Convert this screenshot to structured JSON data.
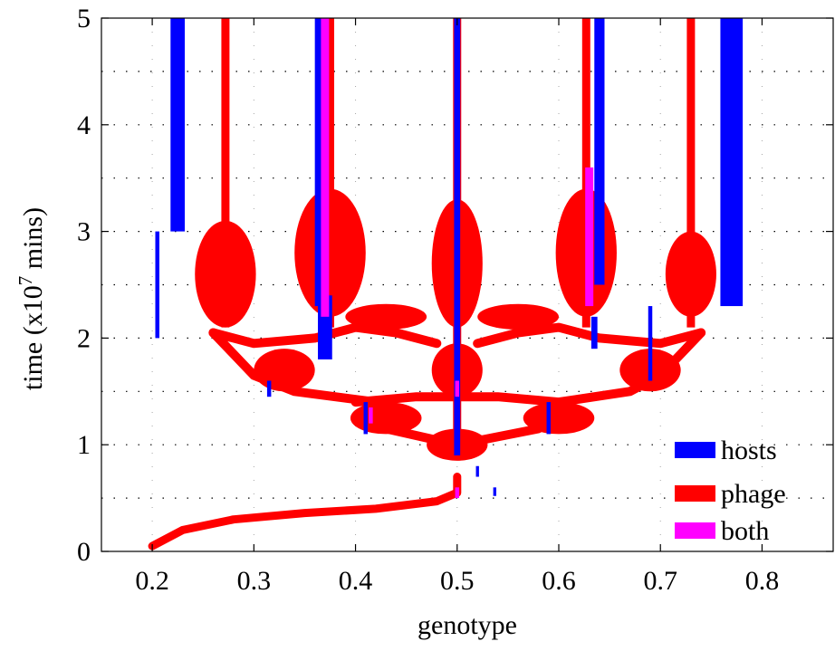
{
  "chart_data": {
    "type": "scatter",
    "title": "",
    "xlabel": "genotype",
    "ylabel_main": "time (x10",
    "ylabel_exp": "7",
    "ylabel_tail": " mins)",
    "xlim": [
      0.15,
      0.87
    ],
    "ylim": [
      0,
      5
    ],
    "xticks": [
      "0.2",
      "0.3",
      "0.4",
      "0.5",
      "0.6",
      "0.7",
      "0.8"
    ],
    "xtick_values": [
      0.2,
      0.3,
      0.4,
      0.5,
      0.6,
      0.7,
      0.8
    ],
    "yticks": [
      "0",
      "1",
      "2",
      "3",
      "4",
      "5"
    ],
    "ytick_values": [
      0,
      1,
      2,
      3,
      4,
      5
    ],
    "grid": "dotted horizontal and vertical",
    "legend_position": "bottom-right",
    "colors": {
      "hosts": "#0000ff",
      "phage": "#ff0000",
      "both": "#ff00ff"
    },
    "series": [
      {
        "name": "hosts",
        "color": "#0000ff",
        "segments": [
          {
            "x": 0.225,
            "y0": 3.0,
            "y1": 5.0,
            "w": 0.014
          },
          {
            "x": 0.365,
            "y0": 2.3,
            "y1": 5.0,
            "w": 0.01
          },
          {
            "x": 0.64,
            "y0": 2.5,
            "y1": 5.0,
            "w": 0.01
          },
          {
            "x": 0.77,
            "y0": 2.3,
            "y1": 5.0,
            "w": 0.022
          },
          {
            "x": 0.5,
            "y0": 0.9,
            "y1": 5.0,
            "w": 0.006
          },
          {
            "x": 0.205,
            "y0": 2.0,
            "y1": 3.0,
            "w": 0.004
          },
          {
            "x": 0.37,
            "y0": 1.8,
            "y1": 2.4,
            "w": 0.014
          },
          {
            "x": 0.635,
            "y0": 1.9,
            "y1": 2.2,
            "w": 0.006
          },
          {
            "x": 0.69,
            "y0": 1.6,
            "y1": 2.3,
            "w": 0.004
          },
          {
            "x": 0.315,
            "y0": 1.45,
            "y1": 1.6,
            "w": 0.004
          },
          {
            "x": 0.41,
            "y0": 1.1,
            "y1": 1.4,
            "w": 0.004
          },
          {
            "x": 0.59,
            "y0": 1.1,
            "y1": 1.4,
            "w": 0.004
          },
          {
            "x": 0.52,
            "y0": 0.7,
            "y1": 0.8,
            "w": 0.003
          },
          {
            "x": 0.537,
            "y0": 0.52,
            "y1": 0.6,
            "w": 0.003
          }
        ]
      },
      {
        "name": "phage",
        "color": "#ff0000",
        "trunks": [
          {
            "x": 0.272,
            "y0": 2.1,
            "y1": 5.0,
            "w": 0.008
          },
          {
            "x": 0.375,
            "y0": 2.1,
            "y1": 5.0,
            "w": 0.008
          },
          {
            "x": 0.5,
            "y0": 1.0,
            "y1": 5.0,
            "w": 0.008
          },
          {
            "x": 0.627,
            "y0": 2.1,
            "y1": 5.0,
            "w": 0.008
          },
          {
            "x": 0.73,
            "y0": 2.1,
            "y1": 5.0,
            "w": 0.008
          }
        ],
        "blobs": [
          {
            "cx": 0.272,
            "cy": 2.6,
            "rx": 0.03,
            "ry": 0.5
          },
          {
            "cx": 0.375,
            "cy": 2.8,
            "rx": 0.035,
            "ry": 0.6
          },
          {
            "cx": 0.5,
            "cy": 2.7,
            "rx": 0.025,
            "ry": 0.6
          },
          {
            "cx": 0.627,
            "cy": 2.8,
            "rx": 0.03,
            "ry": 0.6
          },
          {
            "cx": 0.73,
            "cy": 2.6,
            "rx": 0.025,
            "ry": 0.4
          },
          {
            "cx": 0.5,
            "cy": 1.0,
            "rx": 0.03,
            "ry": 0.15
          },
          {
            "cx": 0.43,
            "cy": 1.25,
            "rx": 0.035,
            "ry": 0.15
          },
          {
            "cx": 0.6,
            "cy": 1.25,
            "rx": 0.035,
            "ry": 0.15
          },
          {
            "cx": 0.33,
            "cy": 1.7,
            "rx": 0.03,
            "ry": 0.2
          },
          {
            "cx": 0.69,
            "cy": 1.7,
            "rx": 0.03,
            "ry": 0.2
          },
          {
            "cx": 0.5,
            "cy": 1.7,
            "rx": 0.025,
            "ry": 0.25
          },
          {
            "cx": 0.43,
            "cy": 2.2,
            "rx": 0.04,
            "ry": 0.12
          },
          {
            "cx": 0.56,
            "cy": 2.2,
            "rx": 0.04,
            "ry": 0.12
          }
        ],
        "backbone": [
          [
            0.2,
            0.05
          ],
          [
            0.23,
            0.2
          ],
          [
            0.28,
            0.3
          ],
          [
            0.35,
            0.36
          ],
          [
            0.42,
            0.4
          ],
          [
            0.48,
            0.47
          ],
          [
            0.5,
            0.55
          ],
          [
            0.5,
            0.7
          ]
        ],
        "branches": [
          [
            [
              0.5,
              1.0
            ],
            [
              0.43,
              1.15
            ],
            [
              0.42,
              1.4
            ],
            [
              0.34,
              1.5
            ],
            [
              0.3,
              1.65
            ],
            [
              0.28,
              1.85
            ],
            [
              0.26,
              2.05
            ]
          ],
          [
            [
              0.5,
              1.0
            ],
            [
              0.58,
              1.15
            ],
            [
              0.6,
              1.4
            ],
            [
              0.67,
              1.5
            ],
            [
              0.7,
              1.65
            ],
            [
              0.72,
              1.85
            ],
            [
              0.74,
              2.05
            ]
          ],
          [
            [
              0.26,
              2.05
            ],
            [
              0.3,
              1.95
            ],
            [
              0.36,
              2.0
            ],
            [
              0.4,
              2.1
            ],
            [
              0.44,
              2.05
            ],
            [
              0.48,
              1.95
            ]
          ],
          [
            [
              0.74,
              2.05
            ],
            [
              0.7,
              1.95
            ],
            [
              0.64,
              2.0
            ],
            [
              0.6,
              2.1
            ],
            [
              0.56,
              2.05
            ],
            [
              0.52,
              1.95
            ]
          ],
          [
            [
              0.4,
              1.4
            ],
            [
              0.46,
              1.45
            ],
            [
              0.54,
              1.45
            ],
            [
              0.6,
              1.4
            ]
          ]
        ]
      },
      {
        "name": "both",
        "color": "#ff00ff",
        "segments": [
          {
            "x": 0.37,
            "y0": 2.2,
            "y1": 5.0,
            "w": 0.008
          },
          {
            "x": 0.63,
            "y0": 2.3,
            "y1": 3.6,
            "w": 0.008
          },
          {
            "x": 0.5,
            "y0": 0.5,
            "y1": 0.6,
            "w": 0.004
          },
          {
            "x": 0.5,
            "y0": 1.45,
            "y1": 1.6,
            "w": 0.004
          },
          {
            "x": 0.415,
            "y0": 1.2,
            "y1": 1.35,
            "w": 0.004
          }
        ]
      }
    ]
  }
}
